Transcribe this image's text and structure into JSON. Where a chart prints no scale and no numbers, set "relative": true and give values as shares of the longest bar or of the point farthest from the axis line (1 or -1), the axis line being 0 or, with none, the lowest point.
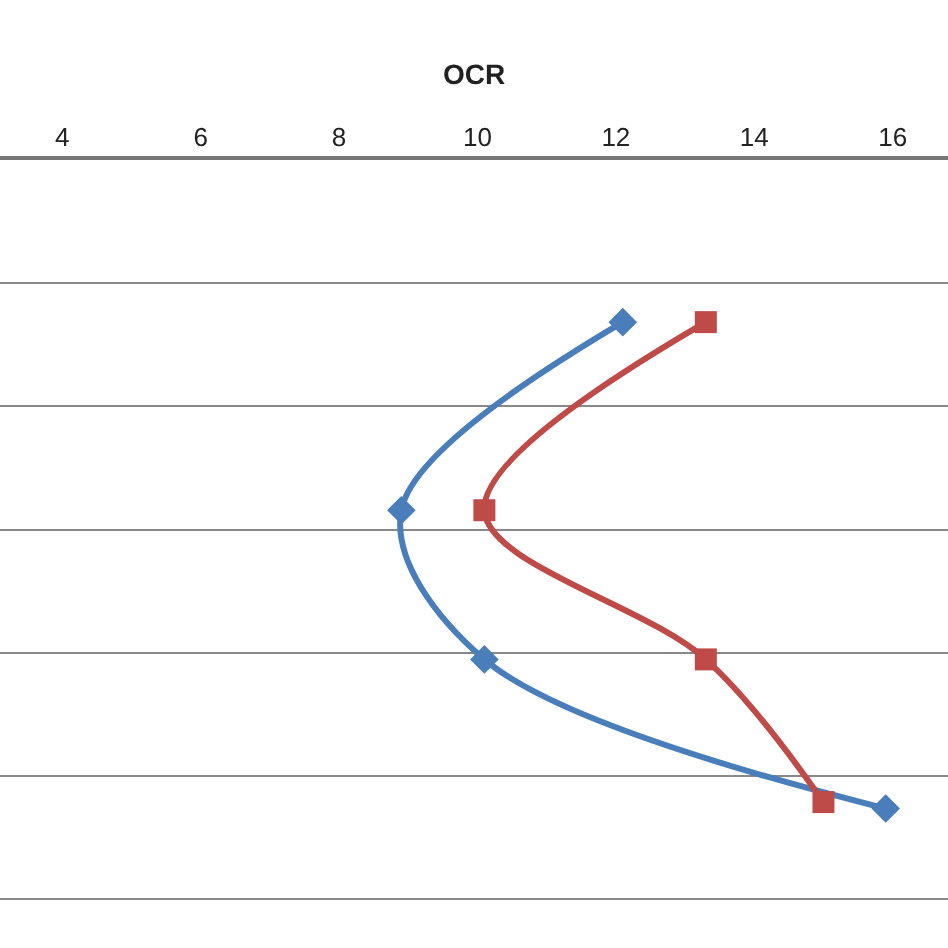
{
  "chart_data": {
    "type": "line",
    "xlabel": "OCR",
    "xlim": [
      3.1,
      16.8
    ],
    "xticks": [
      4,
      6,
      8,
      10,
      12,
      14,
      16
    ],
    "relative": true,
    "grid": "y",
    "line_style": "solid",
    "series": [
      {
        "color": "#4a7ebb",
        "marker": "diamond",
        "x": [
          12.1,
          8.9,
          10.1,
          15.9
        ],
        "values": [
          -0.25,
          -0.54,
          -0.77,
          -1.0
        ]
      },
      {
        "color": "#be4b48",
        "marker": "square",
        "x": [
          13.3,
          10.1,
          13.3,
          15.0
        ],
        "values": [
          -0.25,
          -0.54,
          -0.77,
          -0.99
        ]
      }
    ]
  }
}
